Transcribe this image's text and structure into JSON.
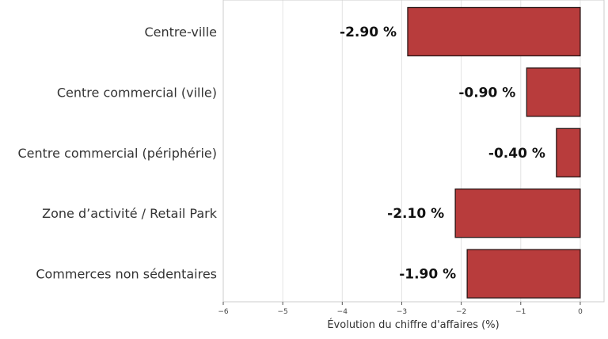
{
  "chart_data": {
    "type": "bar",
    "orientation": "horizontal",
    "categories": [
      "Centre-ville",
      "Centre commercial (ville)",
      "Centre commercial (périphérie)",
      "Zone d’activité / Retail Park",
      "Commerces non sédentaires"
    ],
    "values": [
      -2.9,
      -0.9,
      -0.4,
      -2.1,
      -1.9
    ],
    "data_labels": [
      "-2.90 %",
      "-0.90 %",
      "-0.40 %",
      "-2.10 %",
      "-1.90 %"
    ],
    "xlabel": "Évolution du chiffre d'affaires (%)",
    "ylabel": "",
    "xlim": [
      -6,
      0.4
    ],
    "xticks": [
      -6,
      -5,
      -4,
      -3,
      -2,
      -1,
      0
    ],
    "xtick_labels": [
      "−6",
      "−5",
      "−4",
      "−3",
      "−2",
      "−1",
      "0"
    ],
    "grid": "vertical",
    "bar_color": "#b83c3c",
    "bar_edge_color": "#2a1515"
  }
}
